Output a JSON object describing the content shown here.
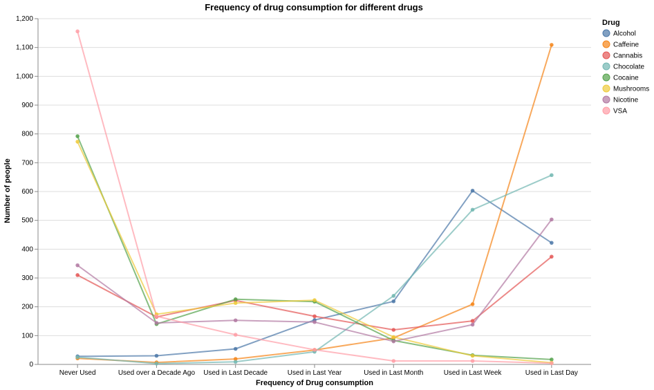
{
  "chart_data": {
    "type": "line",
    "title": "Frequency of drug consumption for different drugs",
    "xlabel": "Frequency of Drug consumption",
    "ylabel": "Number of people",
    "ylim": [
      0,
      1200
    ],
    "yticks": [
      0,
      100,
      200,
      300,
      400,
      500,
      600,
      700,
      800,
      900,
      1000,
      1100,
      1200
    ],
    "ytick_labels": [
      "0",
      "100",
      "200",
      "300",
      "400",
      "500",
      "600",
      "700",
      "800",
      "900",
      "1,000",
      "1,100",
      "1,200"
    ],
    "grid": true,
    "legend_title": "Drug",
    "legend_position": "right",
    "categories": [
      "Never Used",
      "Used over a Decade Ago",
      "Used in Last Decade",
      "Used in Last Year",
      "Used in Last Month",
      "Used in Last Week",
      "Used in Last Day"
    ],
    "series": [
      {
        "name": "Alcohol",
        "color": "#4c78a8",
        "values": [
          28,
          30,
          54,
          154,
          219,
          603,
          422
        ]
      },
      {
        "name": "Caffeine",
        "color": "#f58518",
        "values": [
          21,
          7,
          19,
          50,
          92,
          209,
          1109
        ]
      },
      {
        "name": "Cannabis",
        "color": "#e45756",
        "values": [
          310,
          165,
          222,
          167,
          120,
          151,
          374
        ]
      },
      {
        "name": "Chocolate",
        "color": "#72b7b2",
        "values": [
          25,
          3,
          9,
          44,
          238,
          537,
          657
        ]
      },
      {
        "name": "Cocaine",
        "color": "#54a24b",
        "values": [
          792,
          140,
          226,
          218,
          83,
          32,
          17
        ]
      },
      {
        "name": "Mushrooms",
        "color": "#eeca3b",
        "values": [
          773,
          174,
          213,
          223,
          95,
          30,
          6
        ]
      },
      {
        "name": "Nicotine",
        "color": "#b279a2",
        "values": [
          344,
          144,
          153,
          147,
          80,
          138,
          503
        ]
      },
      {
        "name": "VSA",
        "color": "#ff9da6",
        "values": [
          1156,
          167,
          103,
          51,
          12,
          12,
          4
        ]
      }
    ]
  }
}
